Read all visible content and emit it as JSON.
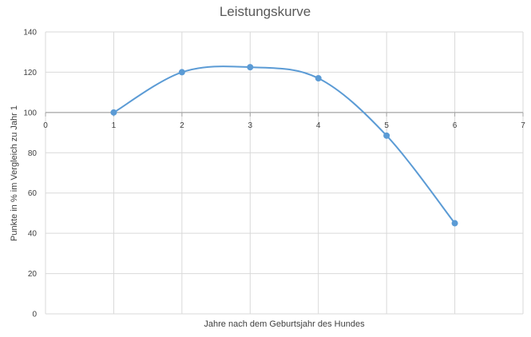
{
  "chart_data": {
    "type": "scatter",
    "title": "Leistungskurve",
    "xlabel": "Jahre nach dem Geburtsjahr des Hundes",
    "ylabel": "Punkte in % im Vergleich zu Jahr 1",
    "xlim": [
      0,
      7
    ],
    "ylim": [
      0,
      140
    ],
    "x_ticks": [
      0,
      1,
      2,
      3,
      4,
      5,
      6,
      7
    ],
    "y_ticks": [
      0,
      20,
      40,
      60,
      80,
      100,
      120,
      140
    ],
    "x_axis_crosses_y_at": 100,
    "smooth_line": true,
    "grid": true,
    "series": [
      {
        "x": [
          1,
          2,
          3,
          4,
          5,
          6
        ],
        "y": [
          100,
          120,
          122.5,
          117,
          88.5,
          45
        ],
        "color": "#5b9bd5"
      }
    ]
  }
}
